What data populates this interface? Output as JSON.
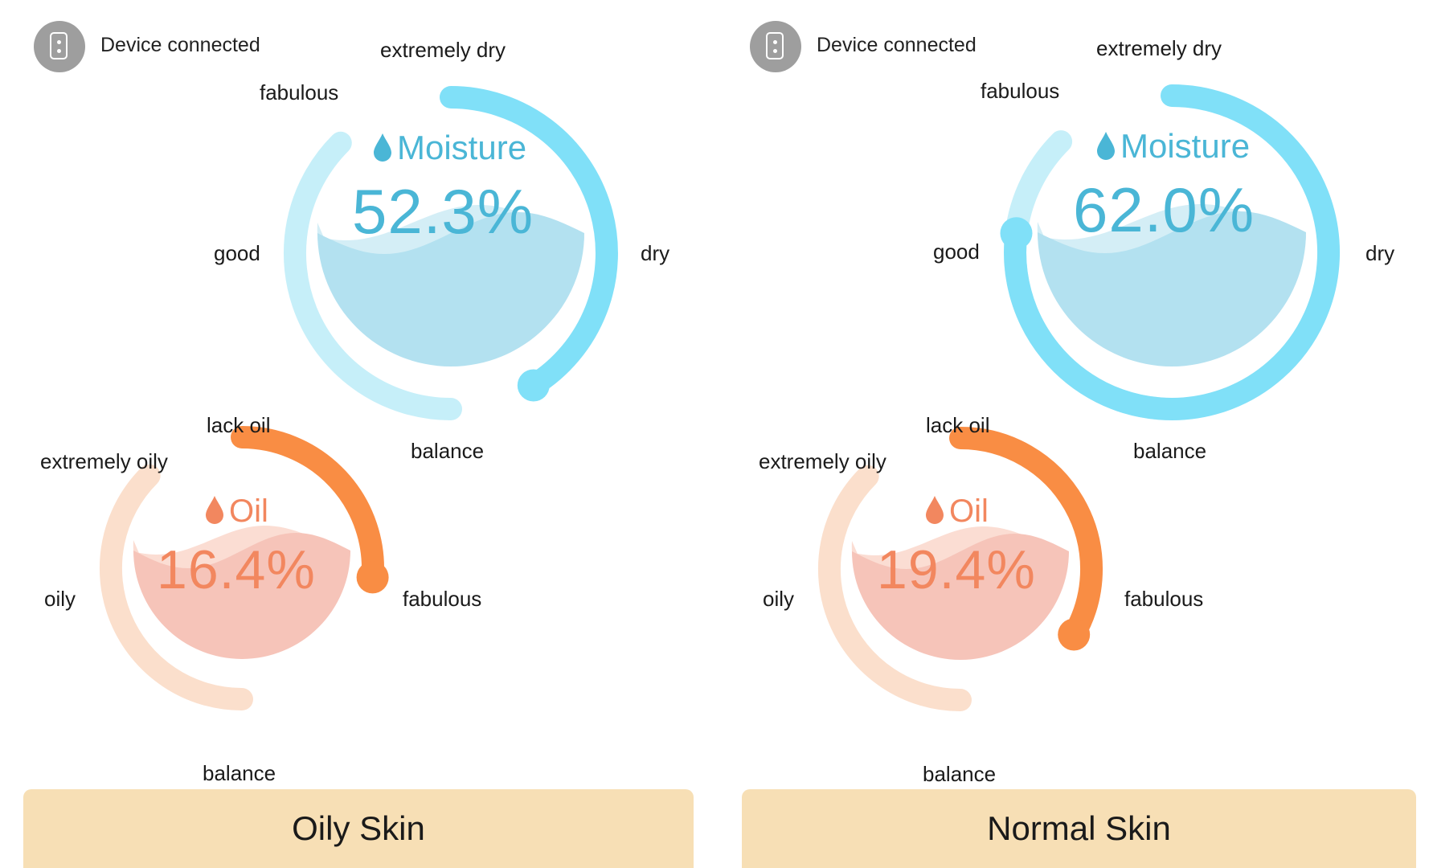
{
  "panels": [
    {
      "device": {
        "status_label": "Device connected",
        "icon": "phone-icon"
      },
      "moisture": {
        "title": "Moisture",
        "value_text": "52.3%",
        "value": 52.3,
        "icon": "water-drop-icon",
        "labels": {
          "extremely_dry": "extremely dry",
          "fabulous": "fabulous",
          "good": "good",
          "dry": "dry",
          "balance": "balance"
        }
      },
      "oil": {
        "title": "Oil",
        "value_text": "16.4%",
        "value": 16.4,
        "icon": "oil-drop-icon",
        "labels": {
          "lack_oil": "lack oil",
          "extremely_oily": "extremely oily",
          "oily": "oily",
          "fabulous": "fabulous",
          "balance": "balance"
        }
      },
      "skin_type_label": "Oily Skin"
    },
    {
      "device": {
        "status_label": "Device connected",
        "icon": "phone-icon"
      },
      "moisture": {
        "title": "Moisture",
        "value_text": "62.0%",
        "value": 62.0,
        "icon": "water-drop-icon",
        "labels": {
          "extremely_dry": "extremely dry",
          "fabulous": "fabulous",
          "good": "good",
          "dry": "dry",
          "balance": "balance"
        }
      },
      "oil": {
        "title": "Oil",
        "value_text": "19.4%",
        "value": 19.4,
        "icon": "oil-drop-icon",
        "labels": {
          "lack_oil": "lack oil",
          "extremely_oily": "extremely oily",
          "oily": "oily",
          "fabulous": "fabulous",
          "balance": "balance"
        }
      },
      "skin_type_label": "Normal Skin"
    }
  ],
  "colors": {
    "moisture_arc": "#80e0f8",
    "moisture_track": "#c6eff9",
    "moisture_fill": "#b3e1f0",
    "moisture_text": "#4ab6d6",
    "oil_arc": "#f98d44",
    "oil_track": "#fbdfcc",
    "oil_fill": "#f6c4b9",
    "oil_text": "#f2875f",
    "skin_button": "#f7dfb5"
  }
}
